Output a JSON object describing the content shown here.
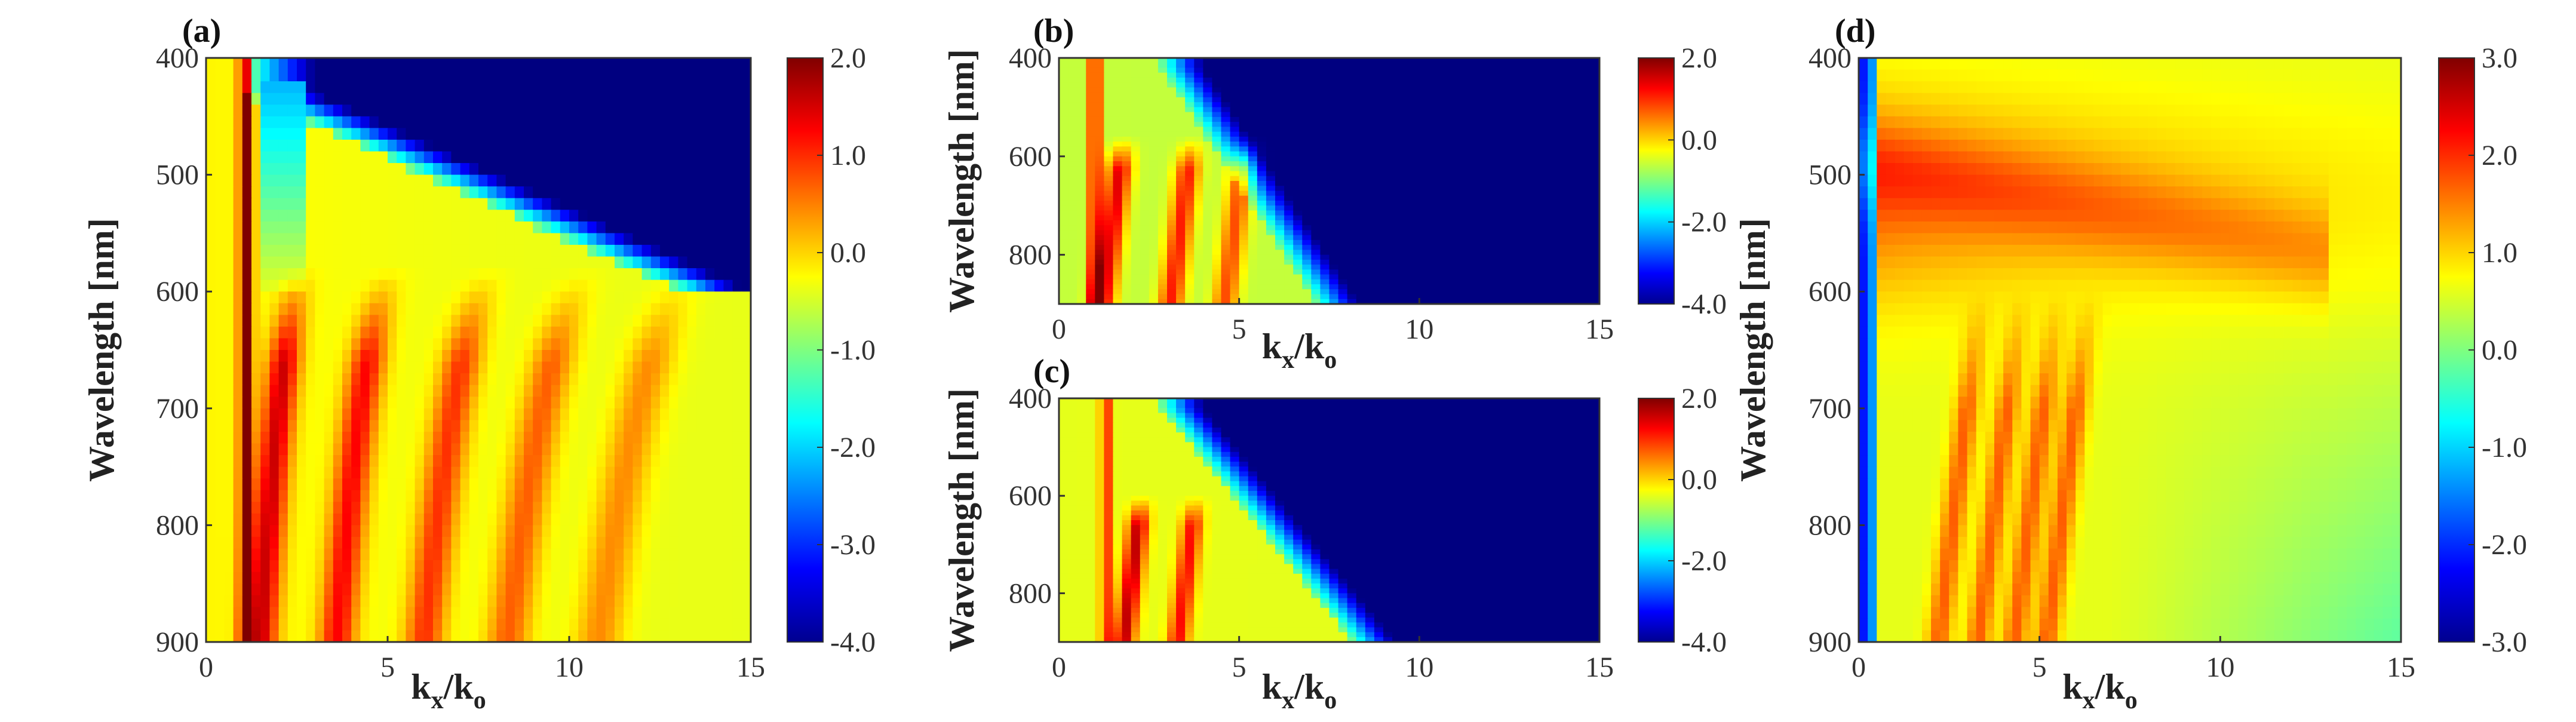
{
  "chart_data": [
    {
      "type": "heatmap",
      "panel": "(a)",
      "xlabel": {
        "base": "k",
        "sub1": "x",
        "mid": "/k",
        "sub2": "o"
      },
      "ylabel": "Wavelength [nm]",
      "xlim": [
        0,
        15
      ],
      "ylim": [
        400,
        900
      ],
      "xticks": [
        {
          "value": 0,
          "label": "0"
        },
        {
          "value": 5,
          "label": "5"
        },
        {
          "value": 10,
          "label": "10"
        },
        {
          "value": 15,
          "label": "15"
        }
      ],
      "yticks": [
        {
          "value": 400,
          "label": "400"
        },
        {
          "value": 500,
          "label": "500"
        },
        {
          "value": 600,
          "label": "600"
        },
        {
          "value": 700,
          "label": "700"
        },
        {
          "value": 800,
          "label": "800"
        },
        {
          "value": 900,
          "label": "900"
        }
      ],
      "colorbar": {
        "min": -4.0,
        "max": 2.0,
        "ticks": [
          {
            "value": 2.0,
            "label": "2.0"
          },
          {
            "value": 1.0,
            "label": "1.0"
          },
          {
            "value": 0.0,
            "label": "0.0"
          },
          {
            "value": -1.0,
            "label": "-1.0"
          },
          {
            "value": -2.0,
            "label": "-2.0"
          },
          {
            "value": -3.0,
            "label": "-3.0"
          },
          {
            "value": -4.0,
            "label": "-4.0"
          }
        ]
      },
      "colormap": "jet"
    },
    {
      "type": "heatmap",
      "panel": "(b)",
      "xlabel": {
        "base": "k",
        "sub1": "x",
        "mid": "/k",
        "sub2": "o"
      },
      "ylabel": "Wavelength [nm]",
      "xlim": [
        0,
        15
      ],
      "ylim": [
        400,
        900
      ],
      "xticks": [
        {
          "value": 0,
          "label": "0"
        },
        {
          "value": 5,
          "label": "5"
        },
        {
          "value": 10,
          "label": "10"
        },
        {
          "value": 15,
          "label": "15"
        }
      ],
      "yticks": [
        {
          "value": 400,
          "label": "400"
        },
        {
          "value": 600,
          "label": "600"
        },
        {
          "value": 800,
          "label": "800"
        }
      ],
      "colorbar": {
        "min": -4.0,
        "max": 2.0,
        "ticks": [
          {
            "value": 2.0,
            "label": "2.0"
          },
          {
            "value": 0.0,
            "label": "0.0"
          },
          {
            "value": -2.0,
            "label": "-2.0"
          },
          {
            "value": -4.0,
            "label": "-4.0"
          }
        ]
      },
      "colormap": "jet"
    },
    {
      "type": "heatmap",
      "panel": "(c)",
      "xlabel": {
        "base": "k",
        "sub1": "x",
        "mid": "/k",
        "sub2": "o"
      },
      "ylabel": "Wavelength [nm]",
      "xlim": [
        0,
        15
      ],
      "ylim": [
        400,
        900
      ],
      "xticks": [
        {
          "value": 0,
          "label": "0"
        },
        {
          "value": 5,
          "label": "5"
        },
        {
          "value": 10,
          "label": "10"
        },
        {
          "value": 15,
          "label": "15"
        }
      ],
      "yticks": [
        {
          "value": 400,
          "label": "400"
        },
        {
          "value": 600,
          "label": "600"
        },
        {
          "value": 800,
          "label": "800"
        }
      ],
      "colorbar": {
        "min": -4.0,
        "max": 2.0,
        "ticks": [
          {
            "value": 2.0,
            "label": "2.0"
          },
          {
            "value": 0.0,
            "label": "0.0"
          },
          {
            "value": -2.0,
            "label": "-2.0"
          },
          {
            "value": -4.0,
            "label": "-4.0"
          }
        ]
      },
      "colormap": "jet"
    },
    {
      "type": "heatmap",
      "panel": "(d)",
      "xlabel": {
        "base": "k",
        "sub1": "x",
        "mid": "/k",
        "sub2": "o"
      },
      "ylabel": "Wavelength [nm]",
      "xlim": [
        0,
        15
      ],
      "ylim": [
        400,
        900
      ],
      "xticks": [
        {
          "value": 0,
          "label": "0"
        },
        {
          "value": 5,
          "label": "5"
        },
        {
          "value": 10,
          "label": "10"
        },
        {
          "value": 15,
          "label": "15"
        }
      ],
      "yticks": [
        {
          "value": 400,
          "label": "400"
        },
        {
          "value": 500,
          "label": "500"
        },
        {
          "value": 600,
          "label": "600"
        },
        {
          "value": 700,
          "label": "700"
        },
        {
          "value": 800,
          "label": "800"
        },
        {
          "value": 900,
          "label": "900"
        }
      ],
      "colorbar": {
        "min": -3.0,
        "max": 3.0,
        "ticks": [
          {
            "value": 3.0,
            "label": "3.0"
          },
          {
            "value": 2.0,
            "label": "2.0"
          },
          {
            "value": 1.0,
            "label": "1.0"
          },
          {
            "value": 0.0,
            "label": "0.0"
          },
          {
            "value": -1.0,
            "label": "-1.0"
          },
          {
            "value": -2.0,
            "label": "-2.0"
          },
          {
            "value": -3.0,
            "label": "-3.0"
          }
        ]
      },
      "colormap": "jet"
    }
  ]
}
